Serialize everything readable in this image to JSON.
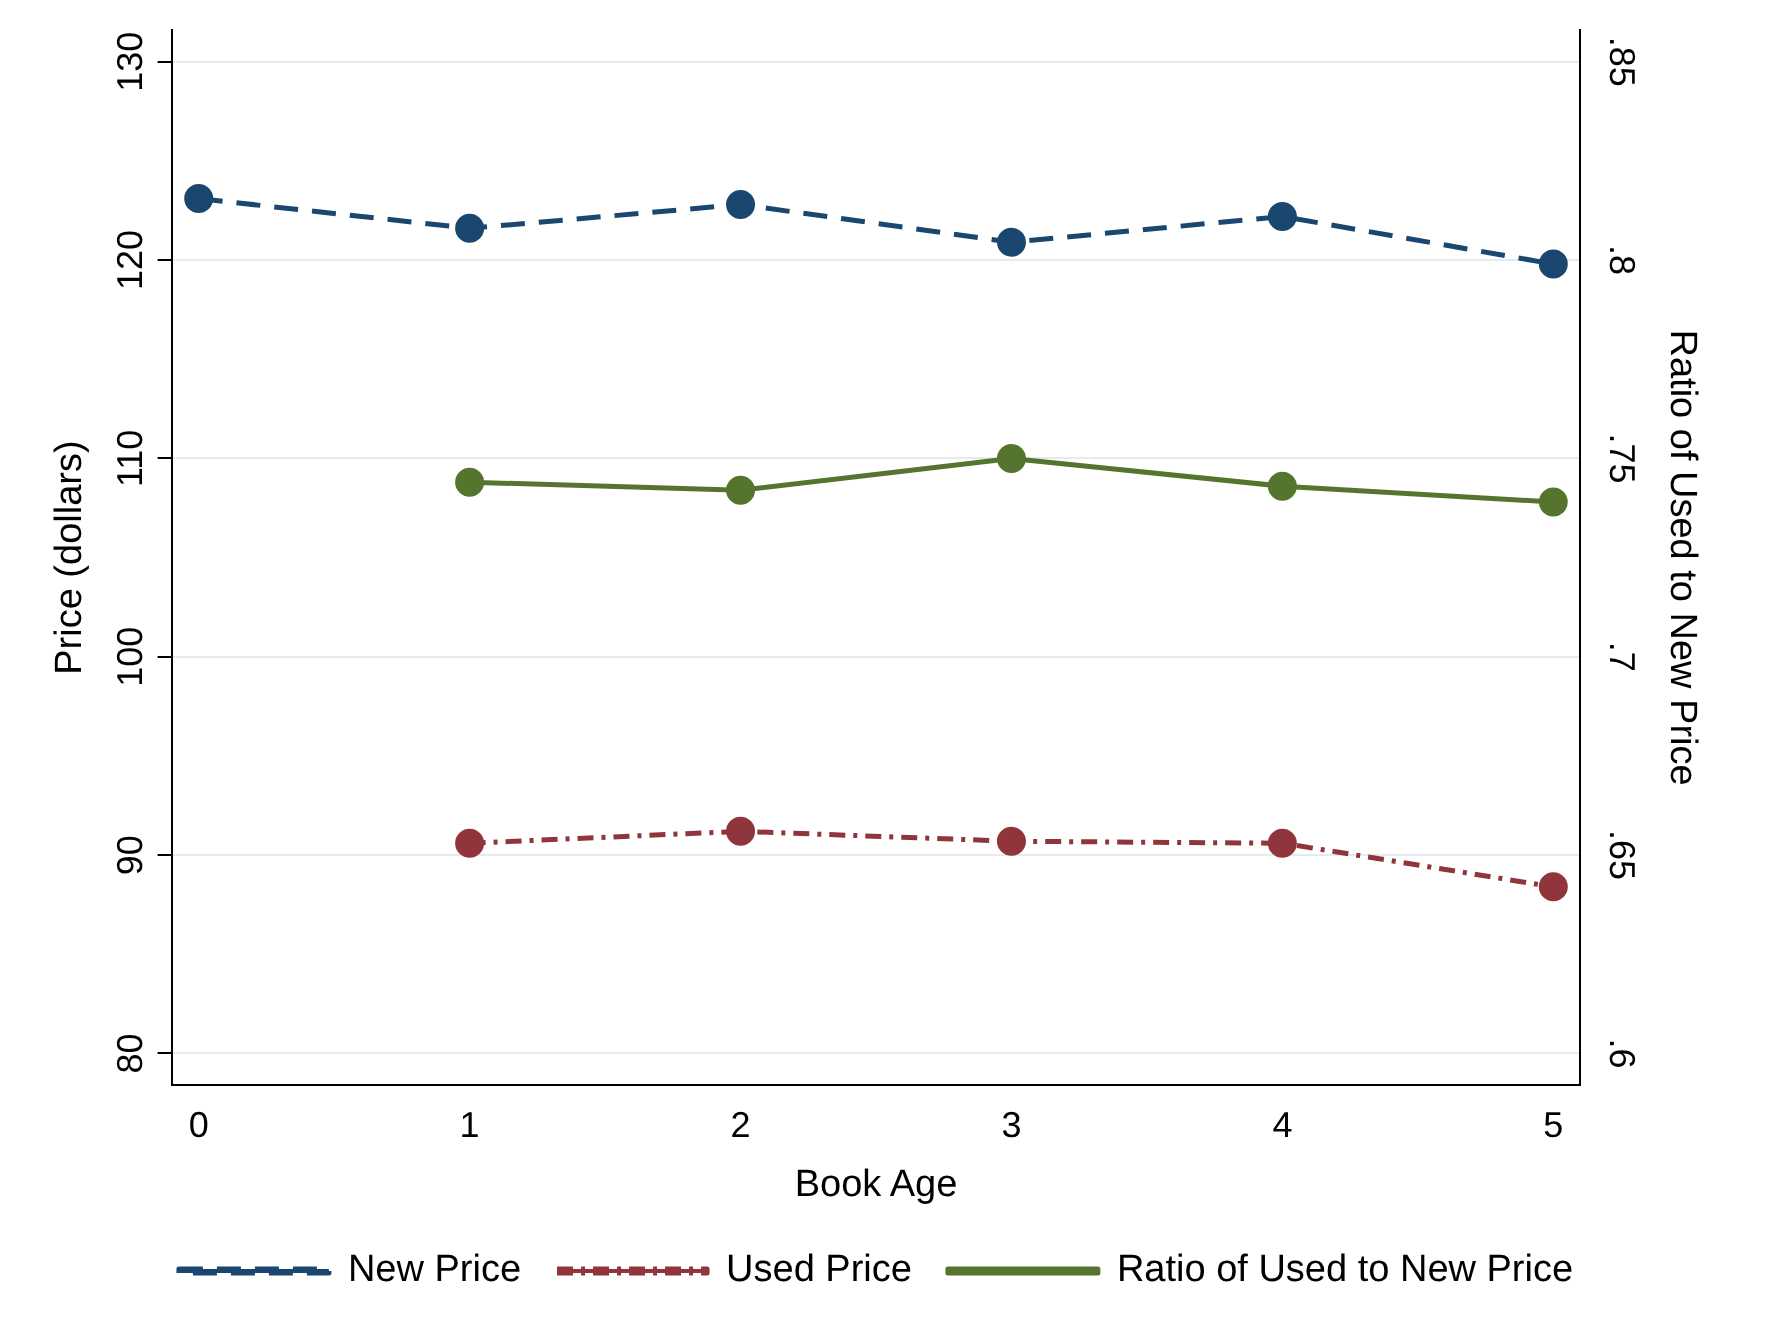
{
  "chart_data": {
    "type": "line",
    "xlabel": "Book Age",
    "ylabel": "Price (dollars)",
    "y2label": "Ratio of Used to New Price",
    "x": [
      0,
      1,
      2,
      3,
      4,
      5
    ],
    "series": [
      {
        "name": "New Price",
        "color": "#1a476f",
        "line_style": "dashed",
        "values": [
          123.1,
          121.6,
          122.8,
          120.9,
          122.2,
          119.8
        ]
      },
      {
        "name": "Used Price",
        "color": "#90353b",
        "line_style": "dotted",
        "values": [
          null,
          90.6,
          91.2,
          90.7,
          90.6,
          88.4
        ]
      },
      {
        "name": "Ratio of Used to New Price",
        "color": "#55752f",
        "line_style": "solid",
        "axis": "y2",
        "values": [
          null,
          0.744,
          0.742,
          0.75,
          0.743,
          0.739
        ]
      }
    ],
    "xlim": [
      -0.1,
      5.1
    ],
    "xticks": [
      0,
      1,
      2,
      3,
      4,
      5
    ],
    "ylim": [
      78.4,
      131.6
    ],
    "yticks": [
      80,
      90,
      100,
      110,
      120,
      130
    ],
    "y2lim": [
      0.592,
      0.858
    ],
    "y2ticks": [
      {
        "value": 0.6,
        "label": ".6"
      },
      {
        "value": 0.65,
        "label": ".65"
      },
      {
        "value": 0.7,
        "label": ".7"
      },
      {
        "value": 0.75,
        "label": ".75"
      },
      {
        "value": 0.8,
        "label": ".8"
      },
      {
        "value": 0.85,
        "label": ".85"
      }
    ],
    "grid": "y",
    "legend": "bottom",
    "marker": "circle"
  }
}
